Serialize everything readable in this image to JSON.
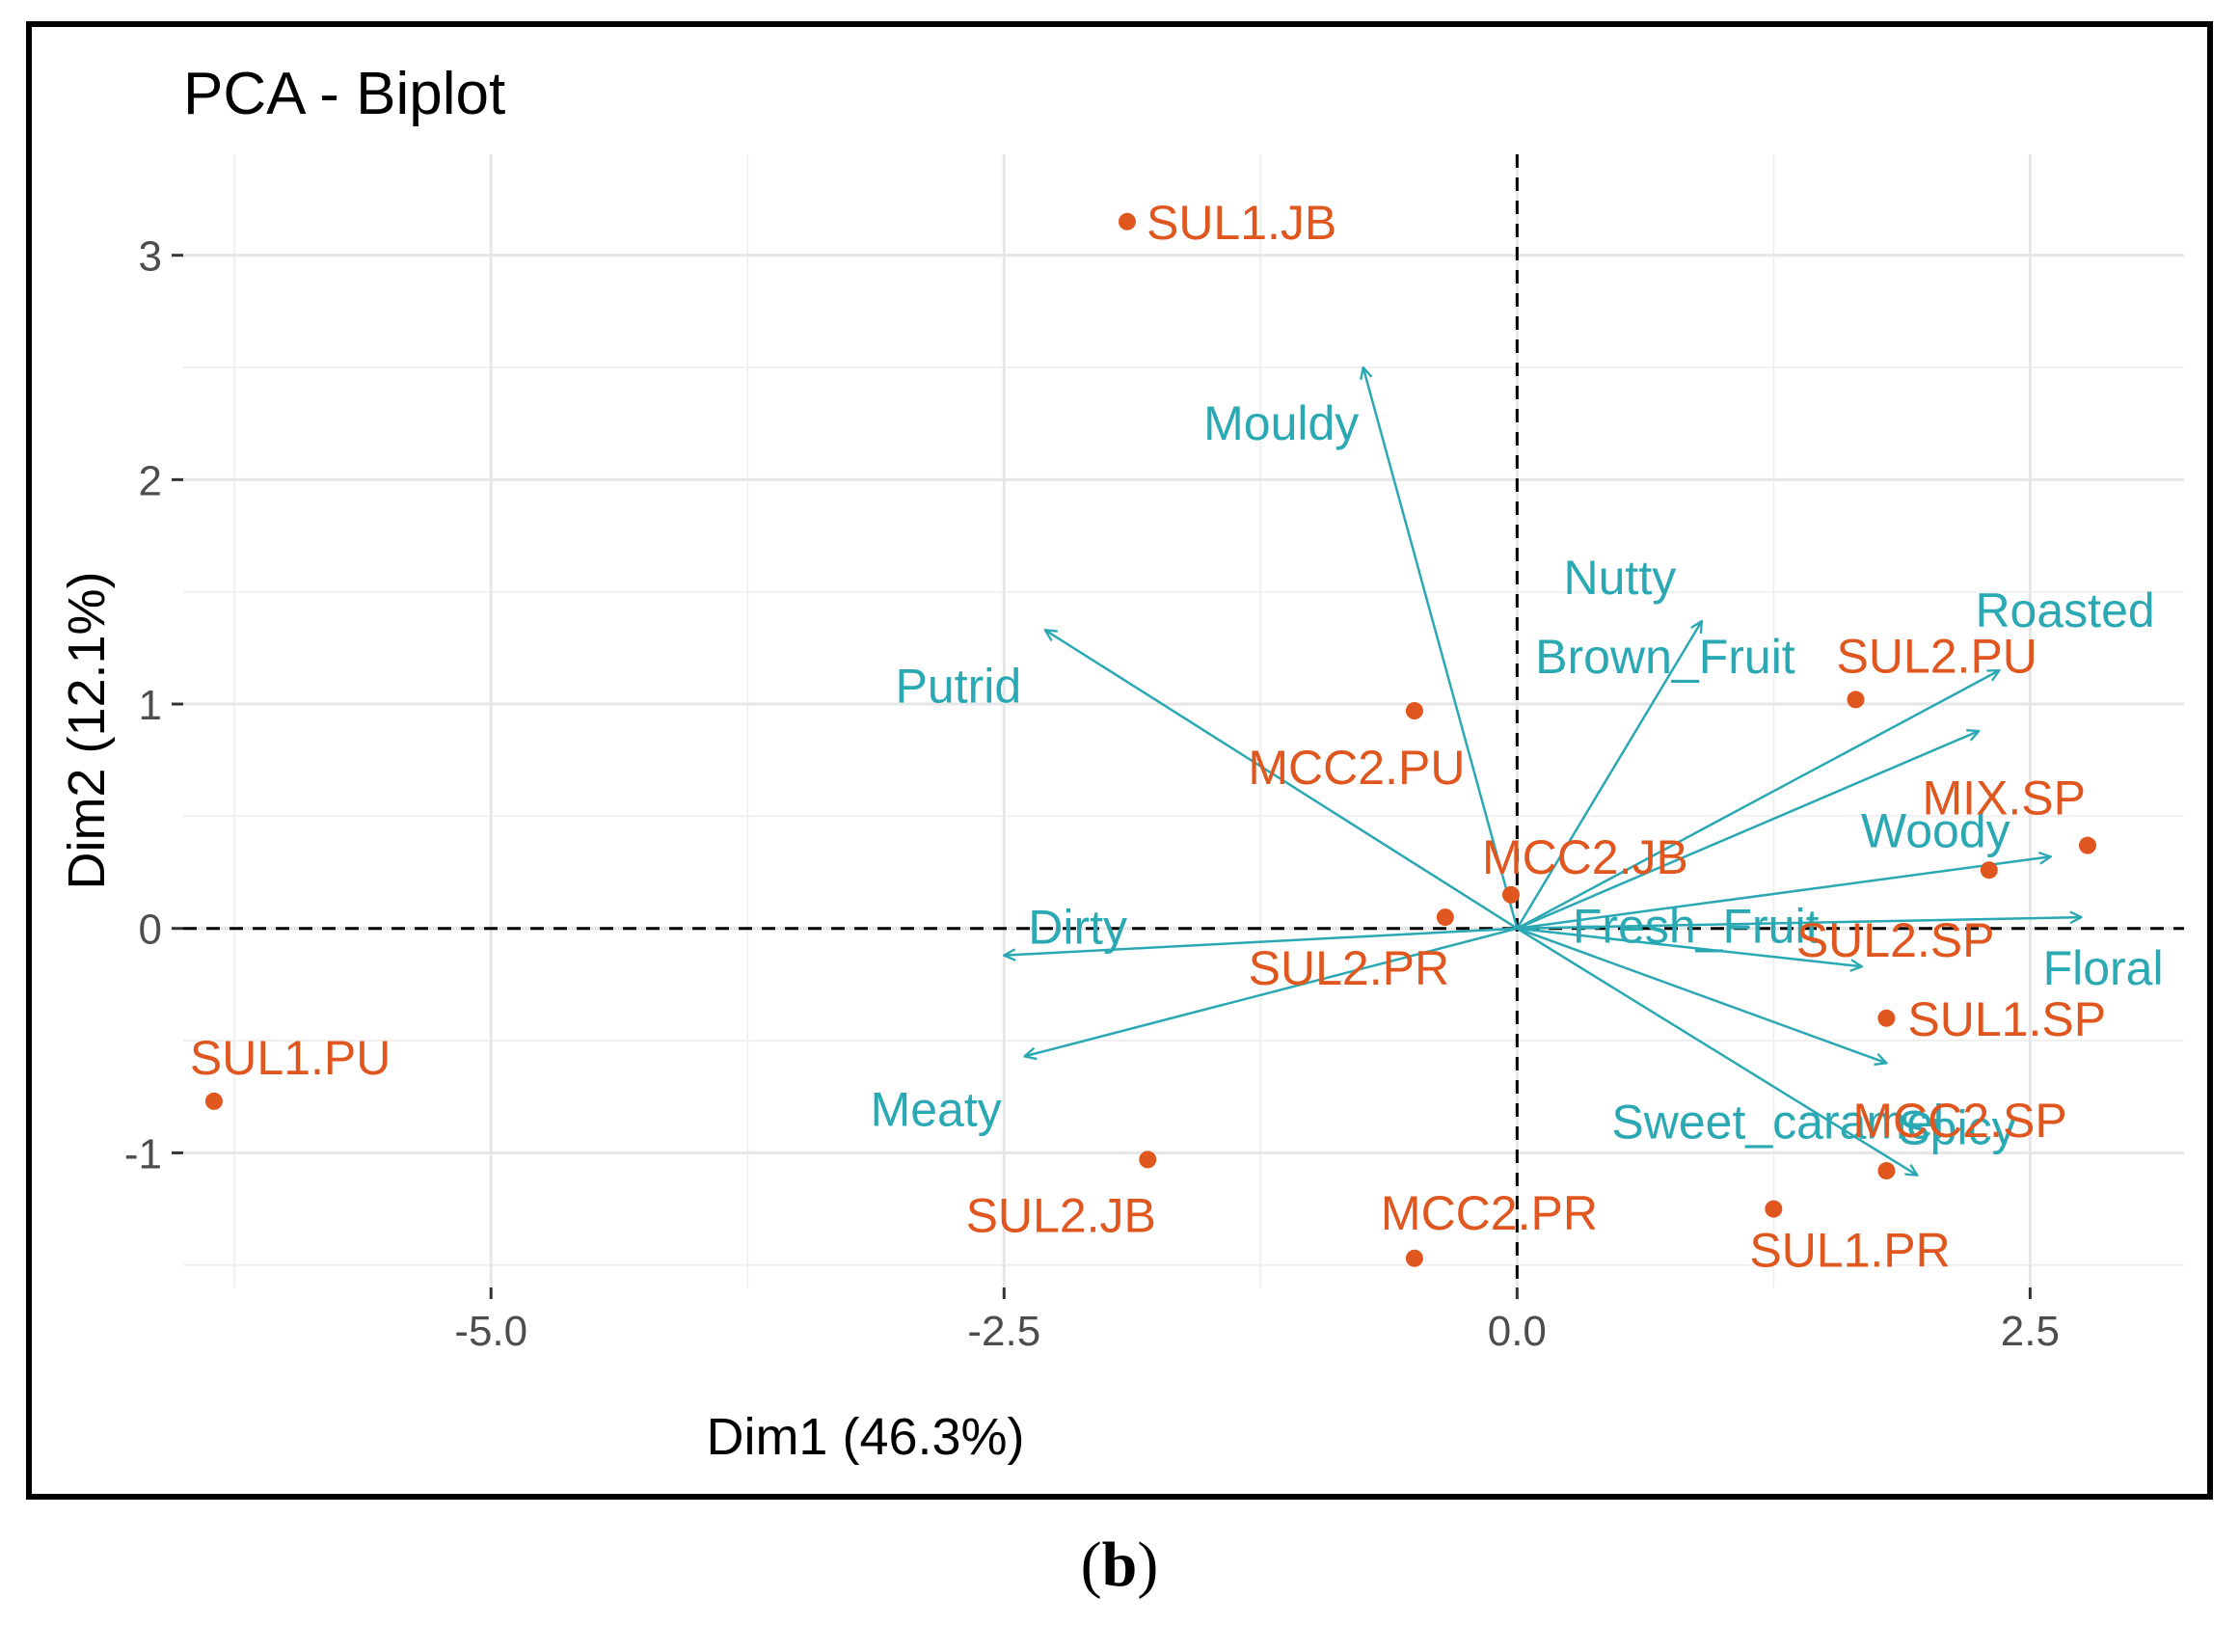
{
  "chart_data": {
    "type": "scatter",
    "subtype": "pca-biplot",
    "title": "PCA - Biplot",
    "xlabel": "Dim1 (46.3%)",
    "ylabel": "Dim2 (12.1%)",
    "xlim": [
      -6.5,
      3.25
    ],
    "ylim": [
      -1.6,
      3.45
    ],
    "x_ticks": [
      -5.0,
      -2.5,
      0.0,
      2.5
    ],
    "x_tick_labels": [
      "-5.0",
      "-2.5",
      "0.0",
      "2.5"
    ],
    "y_ticks": [
      -1,
      0,
      1,
      2,
      3
    ],
    "y_tick_labels": [
      "-1",
      "0",
      "1",
      "2",
      "3"
    ],
    "grid": true,
    "colors": {
      "individuals": "#E0561F",
      "variables": "#2AA8B3",
      "grid": "#E6E6E6",
      "axis_text": "#4D4D4D"
    },
    "individuals": [
      {
        "name": "SUL1.JB",
        "x": -1.9,
        "y": 3.15
      },
      {
        "name": "MCC2.PU",
        "x": -0.5,
        "y": 0.97
      },
      {
        "name": "SUL2.PU",
        "x": 1.65,
        "y": 1.02
      },
      {
        "name": "MIX.SP",
        "x": 2.78,
        "y": 0.37
      },
      {
        "name": "MCC2.JB",
        "x": -0.03,
        "y": 0.15
      },
      {
        "name": "SUL2.SP",
        "x": 2.3,
        "y": 0.26
      },
      {
        "name": "SUL2.PR",
        "x": -0.35,
        "y": 0.05
      },
      {
        "name": "SUL1.SP",
        "x": 1.8,
        "y": -0.4
      },
      {
        "name": "SUL1.PU",
        "x": -6.35,
        "y": -0.77
      },
      {
        "name": "MCC2.SP",
        "x": 1.8,
        "y": -1.08
      },
      {
        "name": "SUL2.JB",
        "x": -1.8,
        "y": -1.03
      },
      {
        "name": "MCC2.PR",
        "x": -0.5,
        "y": -1.47
      },
      {
        "name": "SUL1.PR",
        "x": 1.25,
        "y": -1.25
      }
    ],
    "variables": [
      {
        "name": "Mouldy",
        "x": -0.75,
        "y": 2.5
      },
      {
        "name": "Nutty",
        "x": 0.9,
        "y": 1.37
      },
      {
        "name": "Putrid",
        "x": -2.3,
        "y": 1.33
      },
      {
        "name": "Brown_Fruit",
        "x": 2.25,
        "y": 0.88
      },
      {
        "name": "Roasted",
        "x": 2.35,
        "y": 1.15
      },
      {
        "name": "Woody",
        "x": 2.6,
        "y": 0.32
      },
      {
        "name": "Dirty",
        "x": -2.5,
        "y": -0.12
      },
      {
        "name": "Floral",
        "x": 2.75,
        "y": 0.05
      },
      {
        "name": "Fresh_Fruit",
        "x": 1.68,
        "y": -0.17
      },
      {
        "name": "Meaty",
        "x": -2.4,
        "y": -0.57
      },
      {
        "name": "Sweet_caramel",
        "x": 1.8,
        "y": -0.6
      },
      {
        "name": "Spicy",
        "x": 1.95,
        "y": -1.1
      }
    ]
  },
  "caption": "(b)",
  "caption_letter": "b"
}
